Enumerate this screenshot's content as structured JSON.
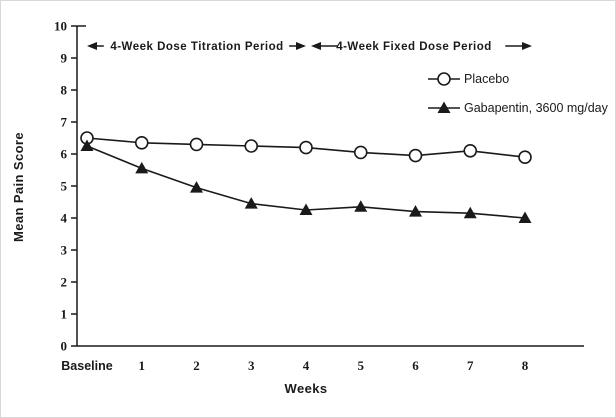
{
  "figure": {
    "description": "Weekly mean pain scores line chart"
  },
  "annotations": {
    "titration": {
      "label": "4-Week Dose Titration Period"
    },
    "fixed": {
      "label": "4-Week Fixed Dose Period"
    }
  },
  "legend": [
    {
      "name": "Placebo",
      "marker": "open-circle"
    },
    {
      "name": "Gabapentin, 3600 mg/day",
      "marker": "filled-triangle"
    }
  ],
  "chart_data": {
    "type": "line",
    "title": "",
    "xlabel": "Weeks",
    "ylabel": "Mean Pain Score",
    "categories": [
      "Baseline",
      "1",
      "2",
      "3",
      "4",
      "5",
      "6",
      "7",
      "8"
    ],
    "series": [
      {
        "name": "Placebo",
        "marker": "open-circle",
        "values": [
          6.5,
          6.35,
          6.3,
          6.25,
          6.2,
          6.05,
          5.95,
          6.1,
          5.9
        ]
      },
      {
        "name": "Gabapentin, 3600 mg/day",
        "marker": "filled-triangle",
        "values": [
          6.25,
          5.55,
          4.95,
          4.45,
          4.25,
          4.35,
          4.2,
          4.15,
          4.0
        ]
      }
    ],
    "ylim": [
      0,
      10
    ],
    "yticks": [
      0,
      1,
      2,
      3,
      4,
      5,
      6,
      7,
      8,
      9,
      10
    ],
    "grid": false,
    "legend_position": "upper-right",
    "annotation_spans": {
      "titration_weeks": [
        0,
        4
      ],
      "fixed_weeks": [
        4,
        8
      ]
    },
    "colors": {
      "line": "#1a1a1a",
      "placebo_marker_fill": "#ffffff",
      "gabapentin_marker_fill": "#1a1a1a",
      "background": "#ffffff"
    }
  }
}
